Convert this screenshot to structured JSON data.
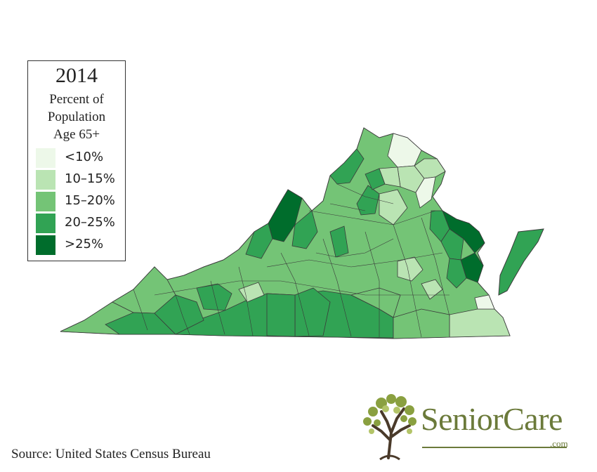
{
  "legend": {
    "year": "2014",
    "subtitle_lines": [
      "Percent of",
      "Population",
      "Age 65+"
    ],
    "items": [
      {
        "label": "<10%",
        "color": "#edf8e9"
      },
      {
        "label": "10–15%",
        "color": "#bae4b3"
      },
      {
        "label": "15–20%",
        "color": "#74c476"
      },
      {
        "label": "20–25%",
        "color": "#31a354"
      },
      {
        "label": ">25%",
        "color": "#006d2c"
      }
    ]
  },
  "map": {
    "region": "Virginia",
    "border_color": "#3a3a3a"
  },
  "source": "Source: United States Census Bureau",
  "logo": {
    "name": "SeniorCare",
    "suffix": ".com",
    "color": "#6b7a3a",
    "icon": "tree-icon"
  }
}
